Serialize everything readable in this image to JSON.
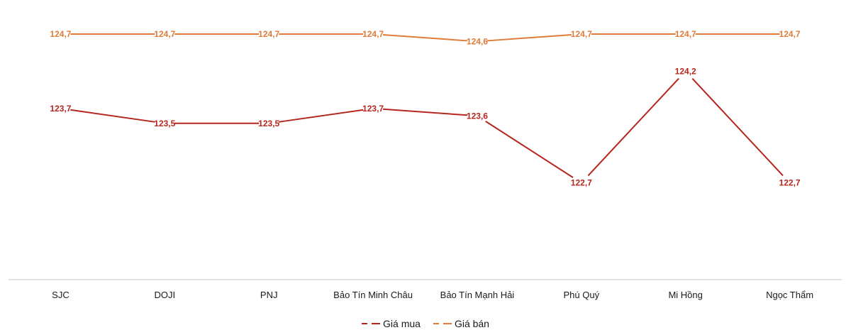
{
  "chart_data": {
    "type": "line",
    "title": "",
    "xlabel": "",
    "ylabel": "",
    "ylim": [
      121.4,
      125.1
    ],
    "grid": false,
    "legend_position": "bottom",
    "categories": [
      "SJC",
      "DOJI",
      "PNJ",
      "Bảo Tín Minh Châu",
      "Bảo Tín Mạnh Hải",
      "Phú Quý",
      "Mi Hồng",
      "Ngọc Thẩm"
    ],
    "series": [
      {
        "name": "Giá mua",
        "color": "#B5261E",
        "values": [
          123.7,
          123.5,
          123.5,
          123.7,
          123.6,
          122.7,
          124.2,
          122.7
        ],
        "labels": [
          "123,7",
          "123,5",
          "123,5",
          "123,7",
          "123,6",
          "122,7",
          "124,2",
          "122,7"
        ]
      },
      {
        "name": "Giá bán",
        "color": "#E07B39",
        "values": [
          124.7,
          124.7,
          124.7,
          124.7,
          124.6,
          124.7,
          124.7,
          124.7
        ],
        "labels": [
          "124,7",
          "124,7",
          "124,7",
          "124,7",
          "124,6",
          "124,7",
          "124,7",
          "124,7"
        ]
      }
    ]
  },
  "legend": {
    "items": [
      {
        "label": "Giá mua",
        "color": "#B5261E"
      },
      {
        "label": "Giá bán",
        "color": "#E07B39"
      }
    ]
  },
  "axis": {
    "color": "#d9d9d9"
  }
}
